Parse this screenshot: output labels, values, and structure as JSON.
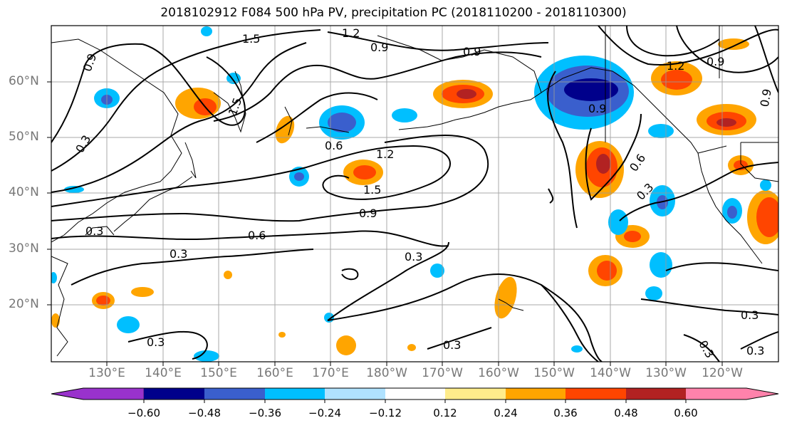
{
  "title": "2018102912 F084 500 hPa PV, precipitation PC (2018110200 - 2018110300)",
  "lat_labels": [
    "60°N",
    "50°N",
    "40°N",
    "30°N",
    "20°N"
  ],
  "lon_labels": [
    "130°E",
    "140°E",
    "150°E",
    "160°E",
    "170°E",
    "180°W",
    "170°W",
    "160°W",
    "150°W",
    "140°W",
    "130°W",
    "120°W"
  ],
  "colorbar": {
    "tick_labels": [
      "−0.60",
      "−0.48",
      "−0.36",
      "−0.24",
      "−0.12",
      "0.12",
      "0.24",
      "0.36",
      "0.48",
      "0.60"
    ],
    "colors": [
      "#9932cc",
      "#00008b",
      "#3a5fcd",
      "#00bfff",
      "#b0e2ff",
      "#ffffff",
      "#ffec8b",
      "#ffa500",
      "#ff4500",
      "#b22222",
      "#ff82ab"
    ]
  },
  "contour_labels": [
    "1.5",
    "1.2",
    "0.9",
    "0.9",
    "0.9",
    "1.5",
    "0.6",
    "1.2",
    "1.5",
    "0.9",
    "0.6",
    "0.3",
    "0.3",
    "0.3",
    "0.3",
    "0.3",
    "1.2",
    "0.9",
    "0.9",
    "0.9",
    "0.6",
    "0.3",
    "0.3",
    "0.3",
    "0.3",
    "0.3"
  ]
}
